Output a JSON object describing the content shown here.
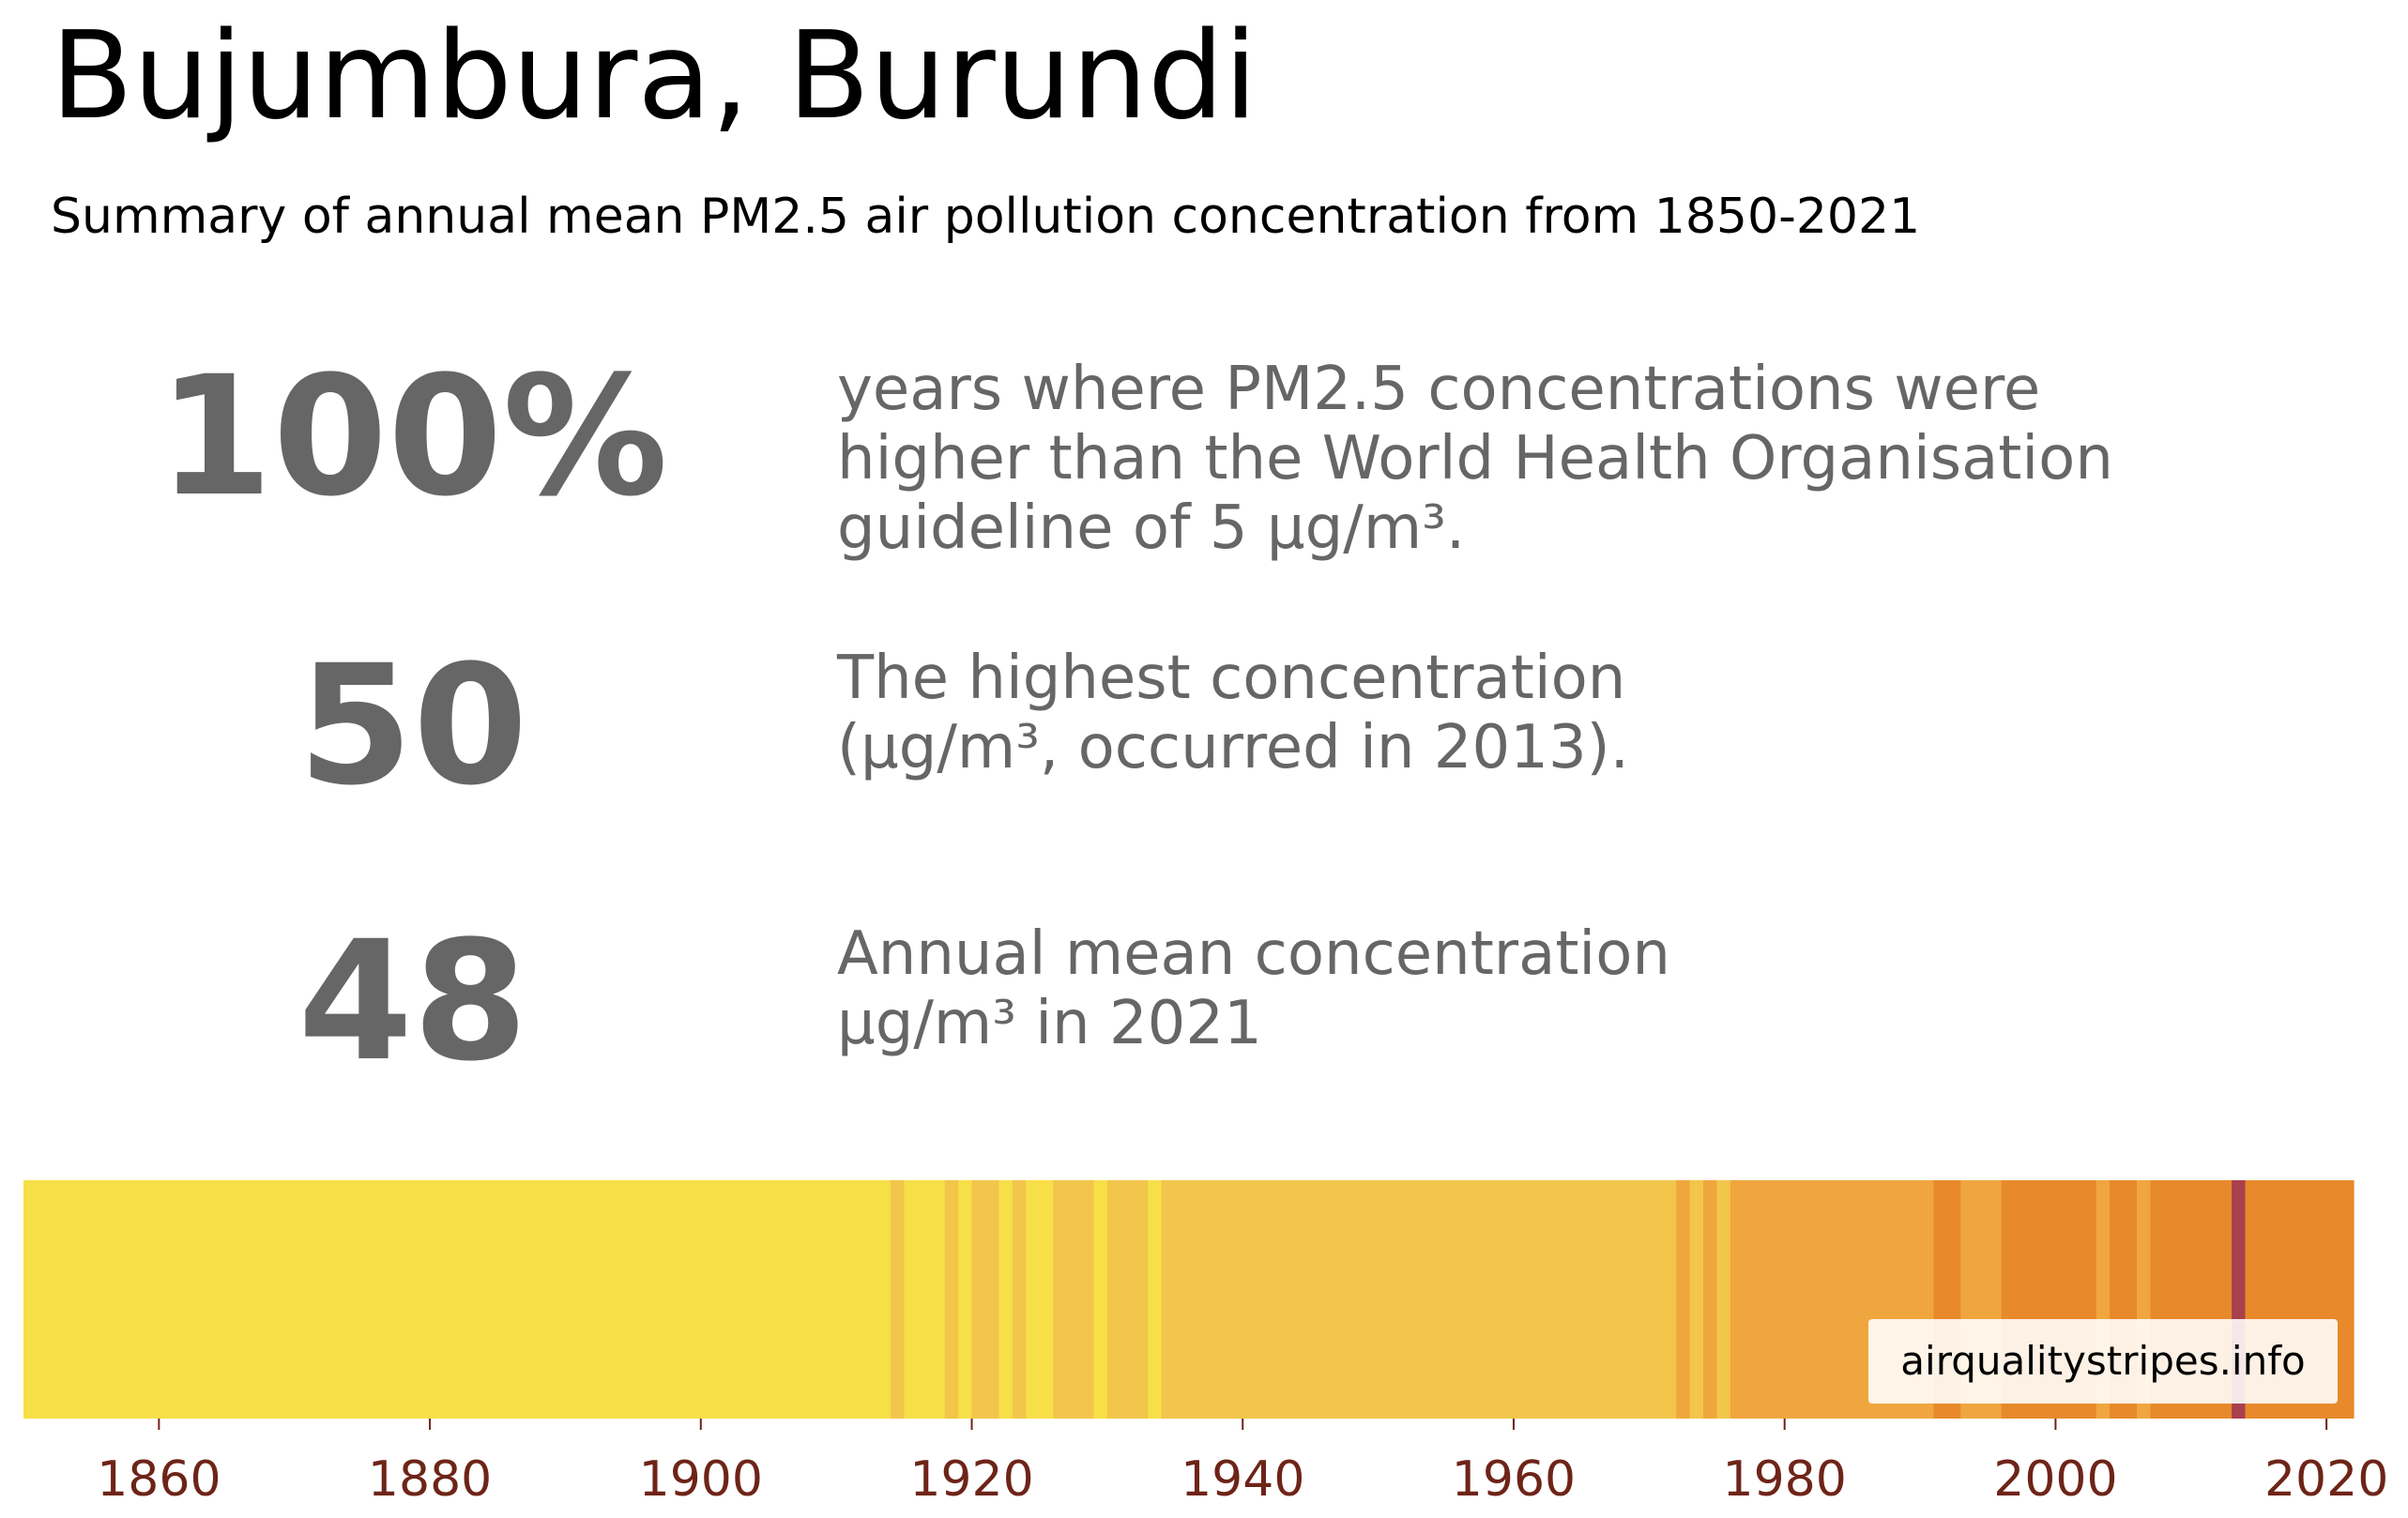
{
  "title": "Bujumbura, Burundi",
  "subtitle": "Summary of annual mean PM2.5 air pollution concentration from 1850-2021",
  "stats": [
    {
      "value": "100%",
      "description": "years where PM2.5 concentrations were\nhigher than the World Health Organisation\nguideline of 5 µg/m³."
    },
    {
      "value": "50",
      "description": "The highest concentration\n(µg/m³, occurred in 2013)."
    },
    {
      "value": "48",
      "description": "Annual mean concentration\nµg/m³ in 2021"
    }
  ],
  "credit": "airqualitystripes.info",
  "chart_data": {
    "type": "heatmap",
    "x_range": [
      1850,
      2022
    ],
    "tick_labels": [
      "1860",
      "1880",
      "1900",
      "1920",
      "1940",
      "1960",
      "1980",
      "2000",
      "2020"
    ],
    "tick_color": "#6e2418",
    "stripes": [
      {
        "from": 1850,
        "to": 1914,
        "color": "#f7df47"
      },
      {
        "from": 1914,
        "to": 1915,
        "color": "#f1c64b"
      },
      {
        "from": 1915,
        "to": 1918,
        "color": "#f7df47"
      },
      {
        "from": 1918,
        "to": 1919,
        "color": "#f1c64b"
      },
      {
        "from": 1919,
        "to": 1920,
        "color": "#f7df47"
      },
      {
        "from": 1920,
        "to": 1922,
        "color": "#f1c64b"
      },
      {
        "from": 1922,
        "to": 1923,
        "color": "#f7df47"
      },
      {
        "from": 1923,
        "to": 1924,
        "color": "#f1c64b"
      },
      {
        "from": 1924,
        "to": 1926,
        "color": "#f7df47"
      },
      {
        "from": 1926,
        "to": 1929,
        "color": "#f1c64b"
      },
      {
        "from": 1929,
        "to": 1930,
        "color": "#f7df47"
      },
      {
        "from": 1930,
        "to": 1933,
        "color": "#f1c64b"
      },
      {
        "from": 1933,
        "to": 1934,
        "color": "#f7df47"
      },
      {
        "from": 1934,
        "to": 1972,
        "color": "#f1c64b"
      },
      {
        "from": 1972,
        "to": 1973,
        "color": "#f0a63e"
      },
      {
        "from": 1973,
        "to": 1974,
        "color": "#f1c64b"
      },
      {
        "from": 1974,
        "to": 1975,
        "color": "#f0a63e"
      },
      {
        "from": 1975,
        "to": 1976,
        "color": "#f1c64b"
      },
      {
        "from": 1976,
        "to": 1991,
        "color": "#f0a63e"
      },
      {
        "from": 1991,
        "to": 1993,
        "color": "#e8892b"
      },
      {
        "from": 1993,
        "to": 1996,
        "color": "#f0a63e"
      },
      {
        "from": 1996,
        "to": 2003,
        "color": "#e8892b"
      },
      {
        "from": 2003,
        "to": 2004,
        "color": "#f0a63e"
      },
      {
        "from": 2004,
        "to": 2006,
        "color": "#e8892b"
      },
      {
        "from": 2006,
        "to": 2007,
        "color": "#f0a63e"
      },
      {
        "from": 2007,
        "to": 2013,
        "color": "#e8892b"
      },
      {
        "from": 2013,
        "to": 2014,
        "color": "#a8404e"
      },
      {
        "from": 2014,
        "to": 2022,
        "color": "#e8892b"
      }
    ]
  }
}
